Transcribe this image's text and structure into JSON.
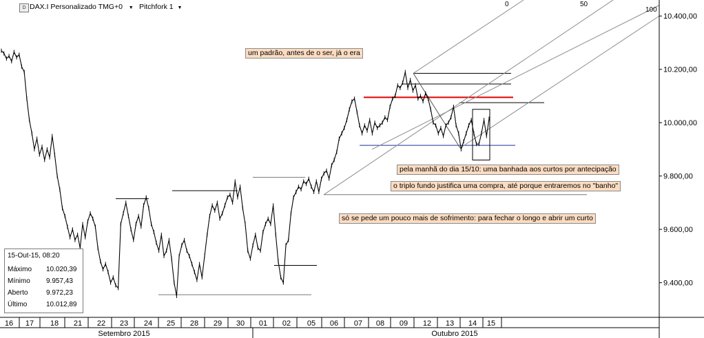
{
  "toolbar": {
    "symbol": "DAX.I Personalizado TMG+0",
    "tool": "Pitchfork 1",
    "dropdown_arrow": "▼"
  },
  "pitchfork_levels": [
    "0",
    "50",
    "100"
  ],
  "annotations": [
    "um padrão, antes de o ser, já o era",
    "pela manhã do dia 15/10: uma banhada aos curtos por antecipação",
    "o triplo fundo justifica uma compra, até porque entraremos no \"banho\"",
    "só se pede um pouco mais de sofrimento: para fechar o longo e abrir um curto"
  ],
  "info_box": {
    "timestamp": "15-Out-15, 08:20",
    "rows": [
      {
        "label": "Máximo",
        "value": "10.020,39"
      },
      {
        "label": "Mínimo",
        "value": "9.957,43"
      },
      {
        "label": "Aberto",
        "value": "9.972,23"
      },
      {
        "label": "Último",
        "value": "10.012,89"
      }
    ]
  },
  "colors": {
    "price": "#000000",
    "resistance": "#e00000",
    "support": "#1c2f9a",
    "pitchfork": "#8c8c8c",
    "annotation_bg": "#fbdcc2"
  },
  "chart_data": {
    "type": "line",
    "title": "",
    "ylabel": "",
    "xlabel": "",
    "ylim": [
      9270,
      10460
    ],
    "y_ticks": [
      9400,
      9600,
      9800,
      10000,
      10200,
      10400
    ],
    "y_tick_labels": [
      "9.400,00",
      "9.600,00",
      "9.800,00",
      "10.000,00",
      "10.200,00",
      "10.400,00"
    ],
    "day_labels": [
      "16",
      "17",
      "18",
      "21",
      "22",
      "23",
      "24",
      "25",
      "28",
      "29",
      "30",
      "01",
      "02",
      "05",
      "06",
      "07",
      "08",
      "09",
      "12",
      "13",
      "14",
      "15"
    ],
    "month_labels": [
      "Setembro 2015",
      "Outubro 2015"
    ],
    "series": [
      {
        "values": [
          10270,
          10260,
          10240,
          10250,
          10230,
          10265,
          10245,
          10255,
          10210,
          10190,
          10090,
          10010,
          9960,
          9900,
          9940,
          9880,
          9910,
          9860,
          9900,
          9870,
          9950,
          9880,
          9800,
          9750,
          9680,
          9650,
          9610,
          9570,
          9600,
          9560,
          9580,
          9530,
          9620,
          9570,
          9630,
          9660,
          9640,
          9610,
          9530,
          9480,
          9450,
          9470,
          9440,
          9400,
          9420,
          9390,
          9380,
          9620,
          9660,
          9700,
          9650,
          9600,
          9560,
          9620,
          9650,
          9610,
          9690,
          9720,
          9680,
          9620,
          9590,
          9550,
          9520,
          9580,
          9500,
          9520,
          9560,
          9490,
          9400,
          9350,
          9500,
          9540,
          9560,
          9520,
          9500,
          9470,
          9440,
          9410,
          9470,
          9420,
          9500,
          9580,
          9650,
          9690,
          9670,
          9700,
          9640,
          9660,
          9690,
          9720,
          9730,
          9700,
          9780,
          9720,
          9760,
          9680,
          9620,
          9520,
          9490,
          9540,
          9580,
          9530,
          9520,
          9590,
          9620,
          9640,
          9620,
          9690,
          9580,
          9480,
          9420,
          9400,
          9540,
          9560,
          9660,
          9720,
          9740,
          9760,
          9750,
          9780,
          9770,
          9790,
          9760,
          9740,
          9780,
          9740,
          9790,
          9810,
          9820,
          9790,
          9840,
          9860,
          9890,
          9940,
          9960,
          9980,
          10010,
          10050,
          10080,
          10090,
          10040,
          9990,
          9960,
          9990,
          9970,
          10010,
          9960,
          10000,
          9980,
          9990,
          10000,
          10020,
          10010,
          10060,
          10090,
          10100,
          10140,
          10130,
          10150,
          10190,
          10130,
          10160,
          10120,
          10140,
          10090,
          10100,
          10080,
          10110,
          10090,
          10050,
          10000,
          9990,
          9960,
          9980,
          9950,
          9990,
          10000,
          10020,
          10060,
          9990,
          9960,
          9900,
          9930,
          9960,
          9990,
          10010,
          9960,
          9920,
          9920,
          9960,
          10010,
          9950,
          10015
        ]
      }
    ]
  }
}
